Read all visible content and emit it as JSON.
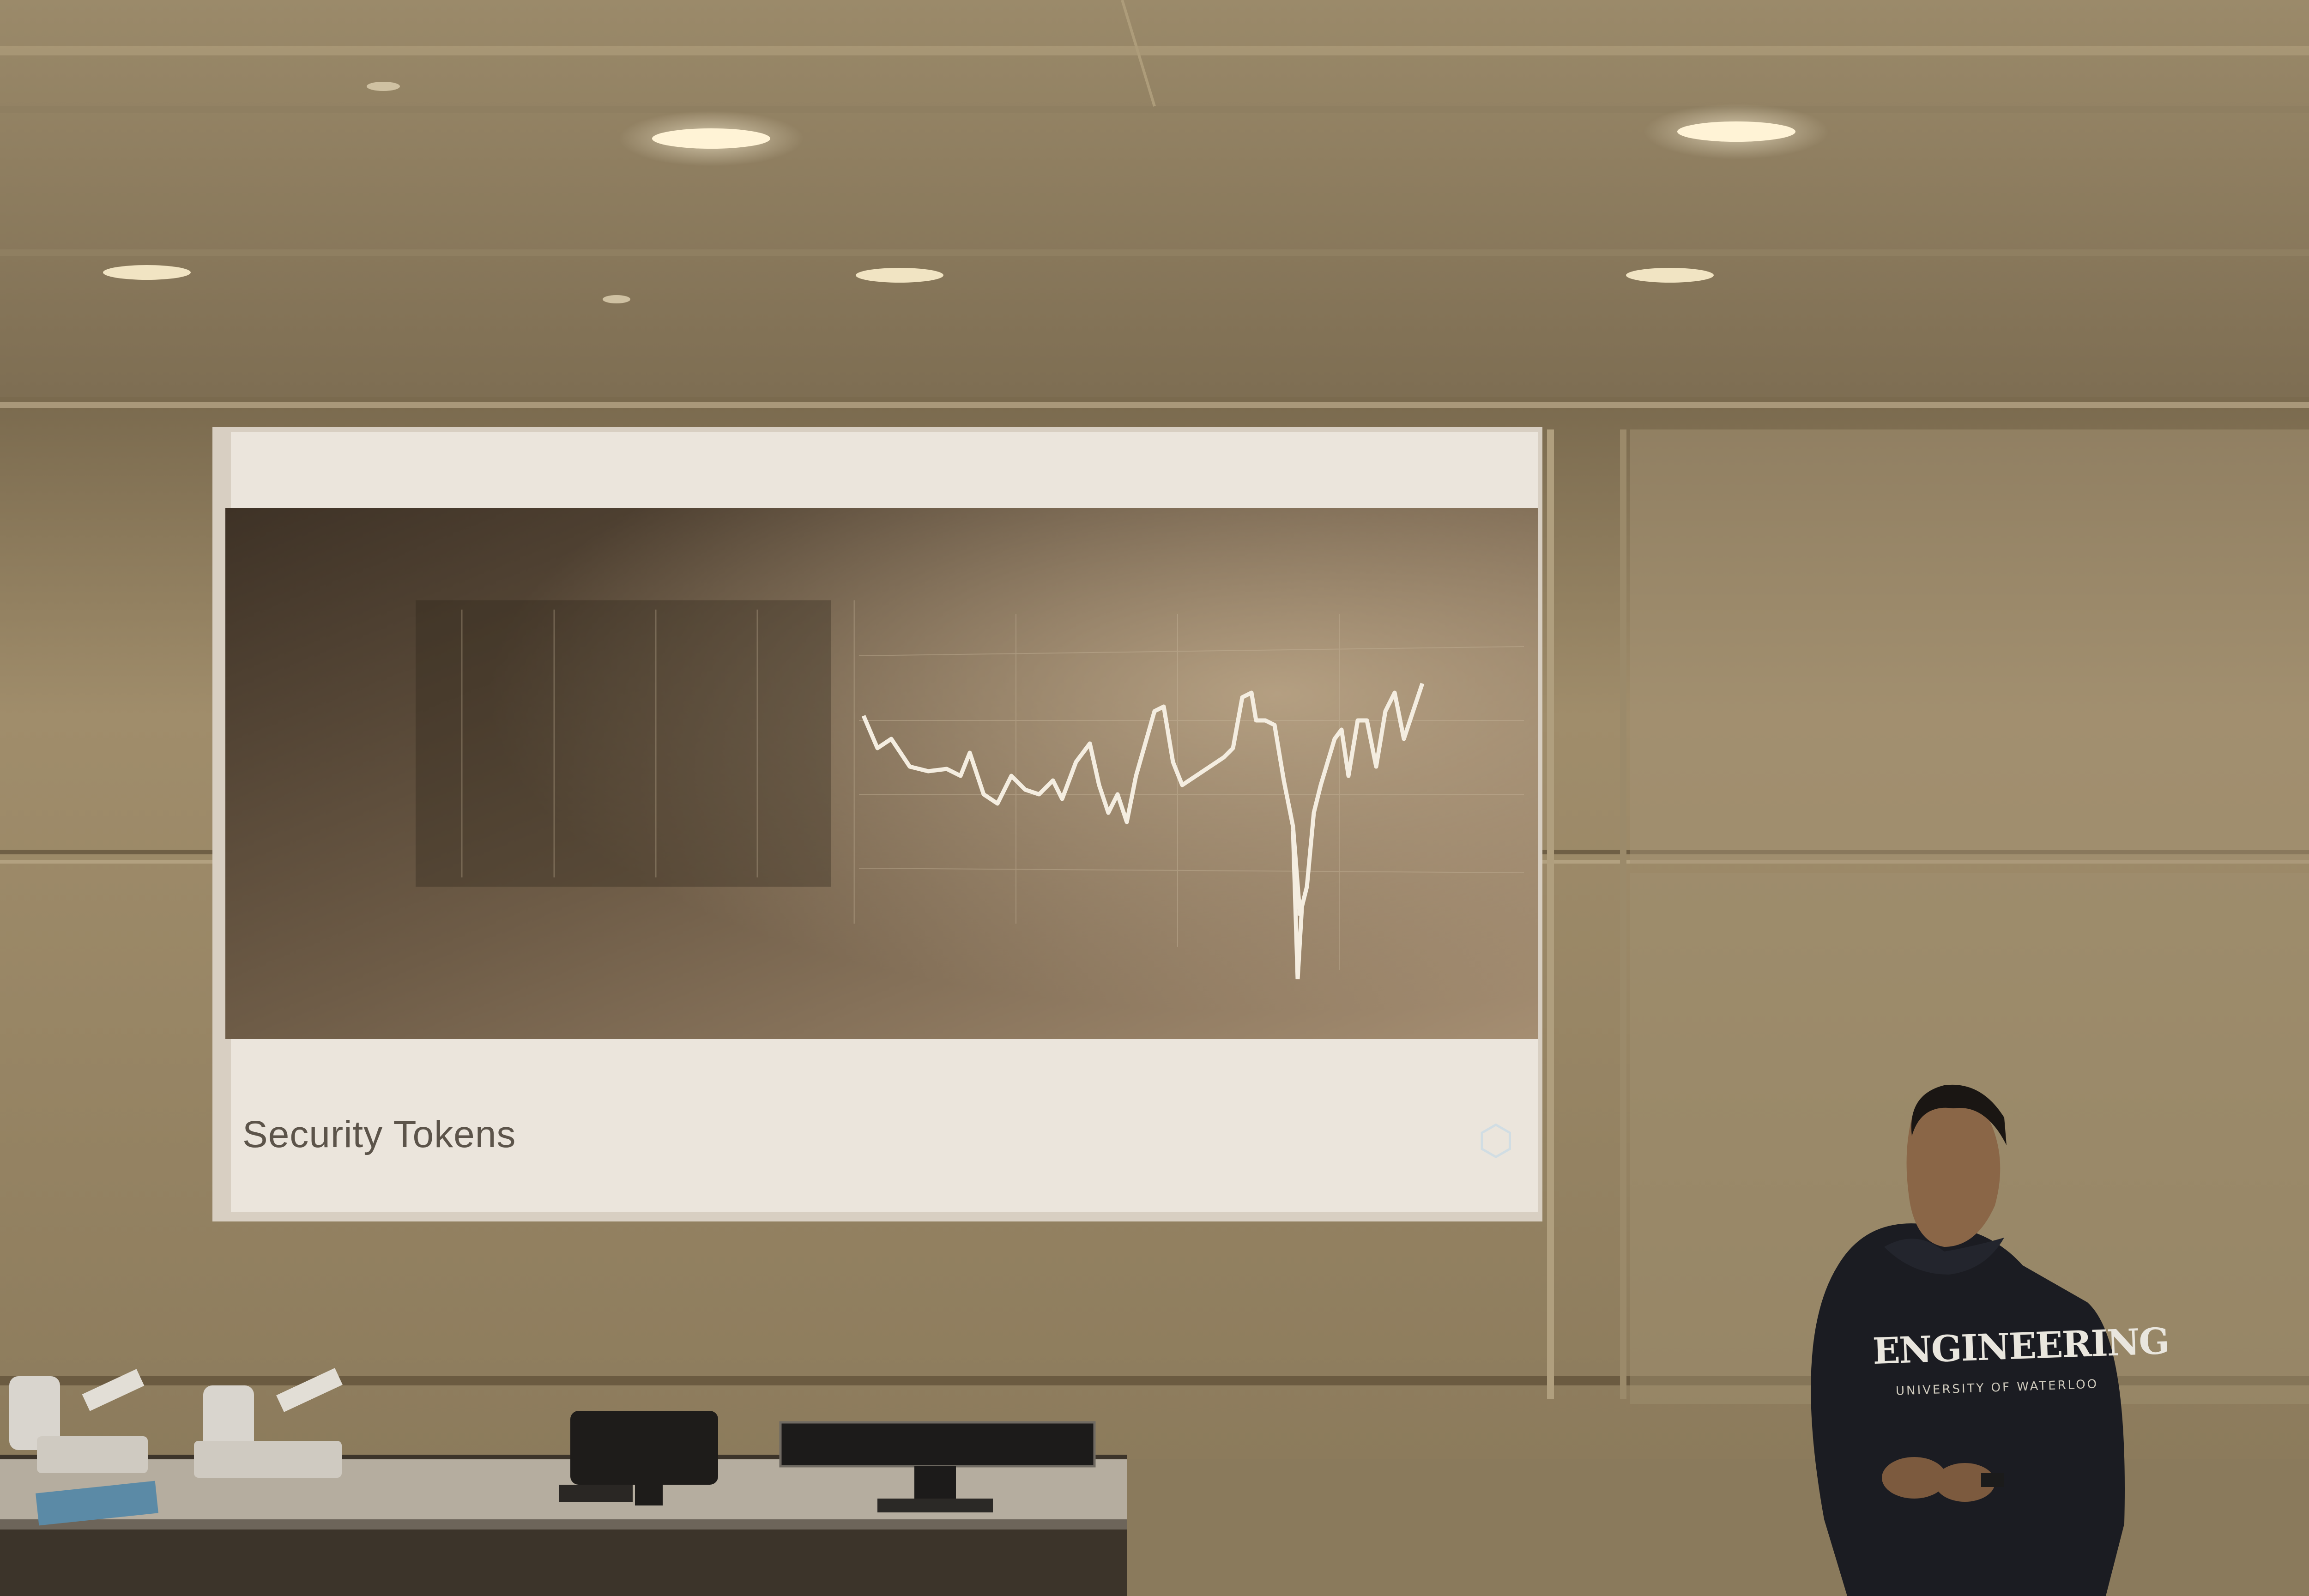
{
  "slide": {
    "title": "Security Tokens"
  },
  "presenter": {
    "hoodie_text": "ENGINEERING",
    "hoodie_subtext": "UNIVERSITY OF WATERLOO"
  }
}
